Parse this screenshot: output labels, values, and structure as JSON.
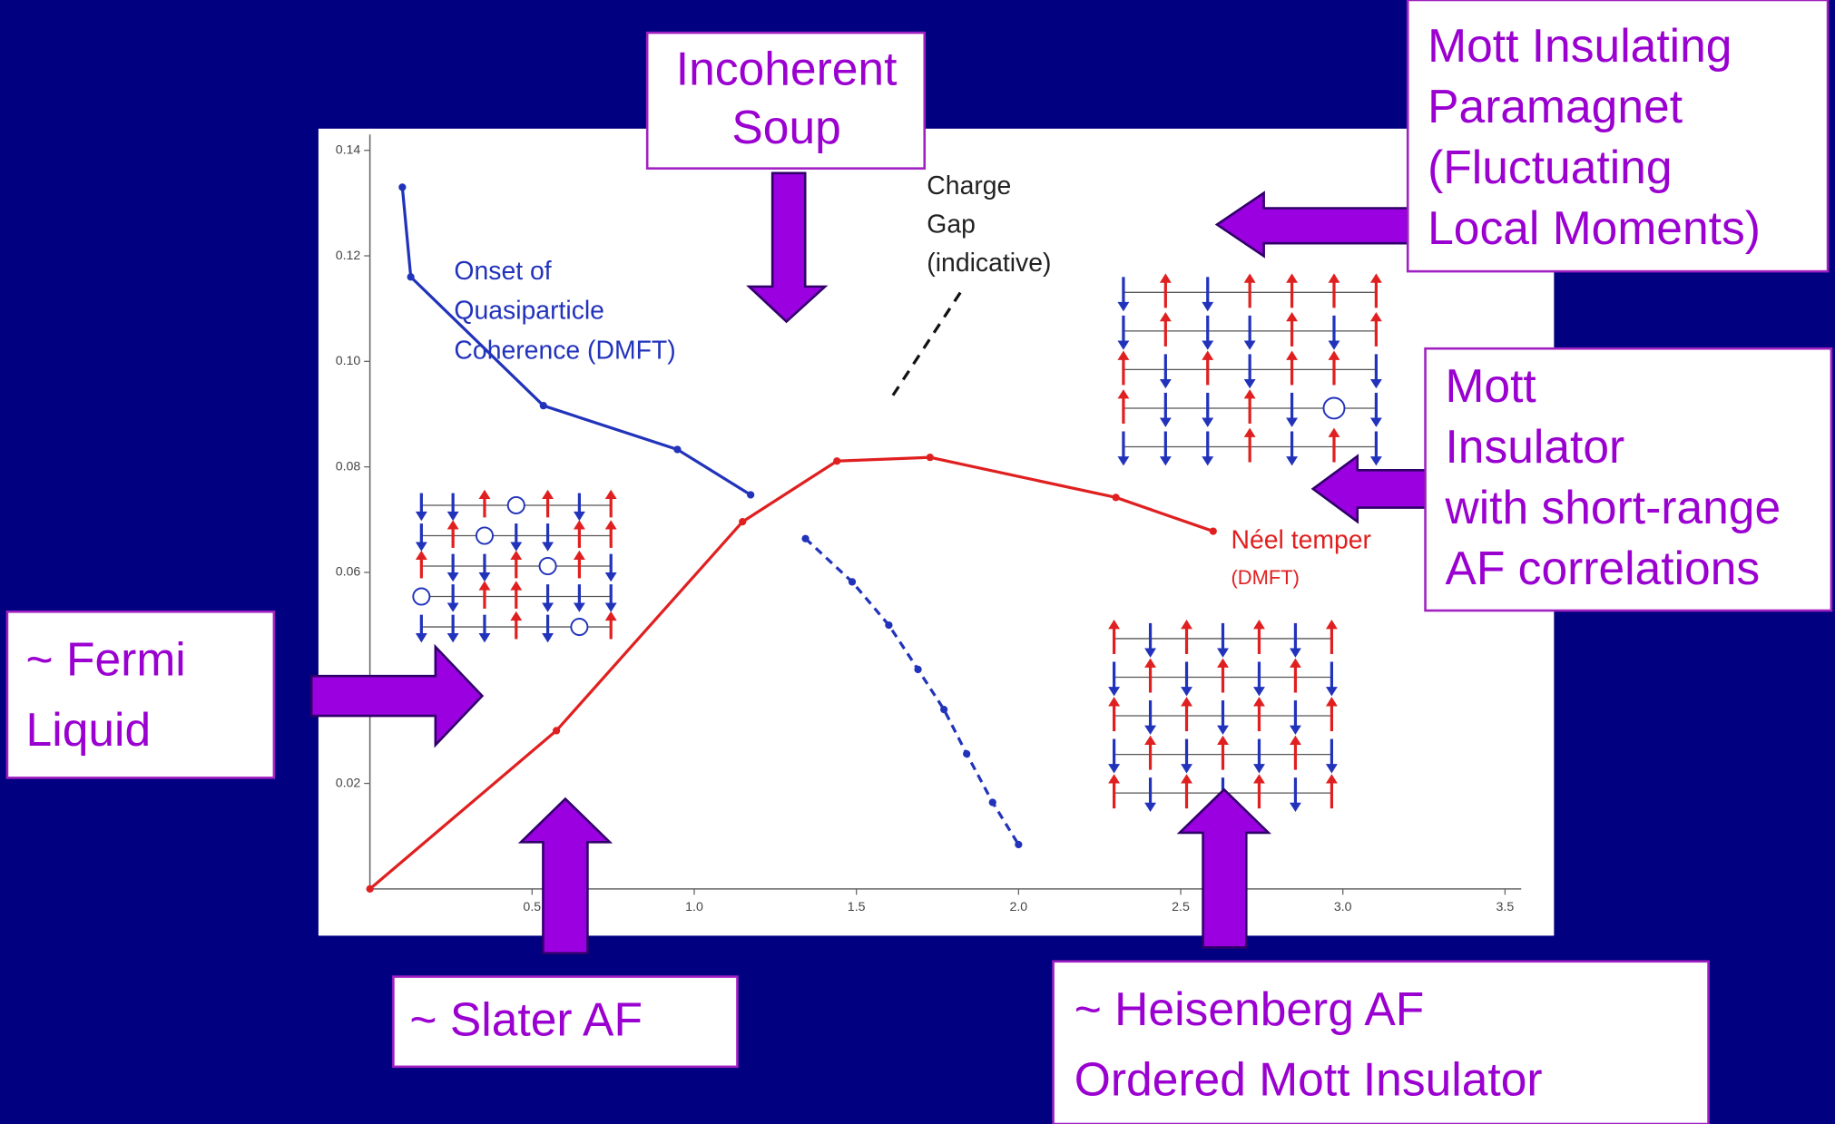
{
  "slide": {
    "boxes": [
      {
        "lines": [
          "Incoherent",
          "Soup"
        ]
      },
      {
        "lines": [
          "Mott Insulating",
          "Paramagnet",
          "(Fluctuating",
          "Local Moments)"
        ]
      },
      {
        "lines": [
          "Mott",
          "Insulator",
          "with short-range",
          "AF correlations"
        ]
      },
      {
        "lines": [
          "~ Fermi",
          "Liquid"
        ]
      },
      {
        "lines": [
          "~ Slater AF"
        ]
      },
      {
        "lines": [
          "~ Heisenberg AF",
          "Ordered Mott Insulator"
        ]
      }
    ]
  },
  "chart_data": {
    "type": "line",
    "xlim": [
      0,
      3.55
    ],
    "ylim": [
      0,
      0.143
    ],
    "xticks": [
      0.5,
      {
        "value": 1,
        "label": "1.0"
      },
      1.5,
      {
        "value": 2,
        "label": "2.0"
      },
      2.5,
      {
        "value": 3,
        "label": "3.0"
      },
      3.5
    ],
    "yticks": [
      0.02,
      0.06,
      0.08,
      {
        "value": 0.1,
        "label": "0.10"
      },
      0.12,
      0.14
    ],
    "series": [
      {
        "color": "#2233bb",
        "style": "solid",
        "x": [
          0.1,
          0.126,
          0.535,
          0.948,
          1.174
        ],
        "values": [
          0.133,
          0.116,
          0.0916,
          0.0833,
          0.0747
        ]
      },
      {
        "color": "#e02020",
        "style": "solid",
        "x": [
          0,
          0.575,
          1.149,
          1.44,
          1.727,
          2.3,
          2.6
        ],
        "values": [
          0,
          0.03,
          0.0696,
          0.0811,
          0.0818,
          0.0742,
          0.0678
        ]
      },
      {
        "color": "#2233bb",
        "style": "dashed",
        "x": [
          1.343,
          1.487,
          1.6,
          1.69,
          1.77,
          1.84,
          1.92,
          2.0
        ],
        "values": [
          0.0664,
          0.0582,
          0.05,
          0.0416,
          0.034,
          0.0256,
          0.0164,
          0.0084
        ]
      }
    ],
    "annotations": [
      {
        "lines": [
          "Onset of",
          "Quasiparticle",
          "Coherence (DMFT)"
        ],
        "color": "#2233bb"
      },
      {
        "lines": [
          "Charge",
          "Gap",
          "(indicative)"
        ],
        "color": "#222222"
      },
      {
        "lines": [
          "Néel temper",
          "(DMFT)"
        ],
        "color": "#e02020"
      }
    ]
  }
}
